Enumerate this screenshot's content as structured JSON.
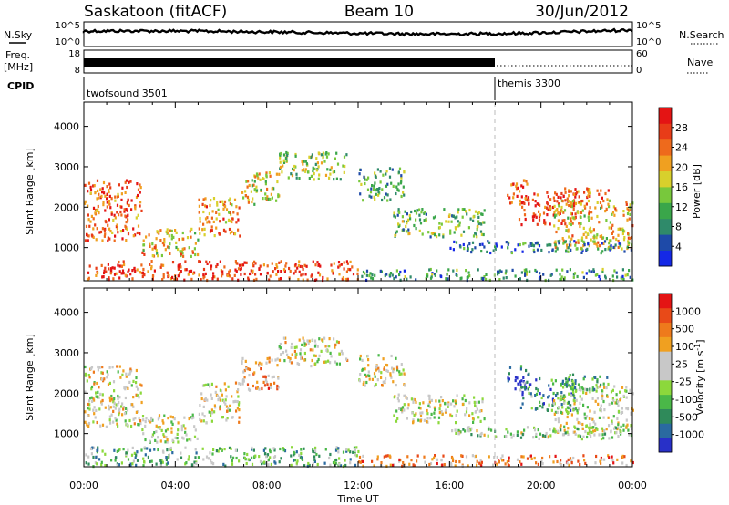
{
  "header": {
    "station": "Saskatoon (fitACF)",
    "beam": "Beam 10",
    "date": "30/Jun/2012"
  },
  "status_panels": {
    "nsky_label": "N.Sky",
    "nsearch_label": "N.Search",
    "freq_label_line1": "Freq.",
    "freq_label_line2": "[MHz]",
    "nave_label": "Nave",
    "cpid_label": "CPID",
    "nsky_ticks": [
      "10^5",
      "10^0"
    ],
    "nsearch_ticks": [
      "10^5",
      "10^0"
    ],
    "freq_ticks": [
      "18",
      "8"
    ],
    "nave_ticks": [
      "60",
      "0"
    ],
    "cpid_segments": [
      {
        "name": "twofsound 3501",
        "start_hour": 0,
        "end_hour": 18
      },
      {
        "name": "themis 3300",
        "start_hour": 18,
        "end_hour": 24
      }
    ]
  },
  "chart_data": [
    {
      "type": "heatmap",
      "quantity": "Power",
      "ylabel": "Slant Range [km]",
      "xlabel": "Time UT",
      "x_ticks": [
        "00:00",
        "04:00",
        "08:00",
        "12:00",
        "16:00",
        "20:00",
        "00:00"
      ],
      "xlim_hours": [
        0,
        24
      ],
      "y_ticks": [
        1000,
        2000,
        3000,
        4000
      ],
      "ylim": [
        180,
        4600
      ],
      "colorbar": {
        "label": "Power [dB]",
        "ticks": [
          "4",
          "8",
          "12",
          "16",
          "20",
          "24",
          "28"
        ],
        "colors": [
          "#1428e6",
          "#1e4aa8",
          "#2f8a6a",
          "#3aa64a",
          "#78c83c",
          "#d8d02c",
          "#f0a020",
          "#ee6a1c",
          "#e83c18",
          "#e41414"
        ]
      },
      "bands": [
        {
          "t0": 0.0,
          "t1": 2.5,
          "r0": 1200,
          "r1": 2700,
          "level": 0.8
        },
        {
          "t0": 2.5,
          "t1": 5.0,
          "r0": 800,
          "r1": 1500,
          "level": 0.6
        },
        {
          "t0": 5.0,
          "t1": 6.8,
          "r0": 1300,
          "r1": 2300,
          "level": 0.7
        },
        {
          "t0": 6.8,
          "t1": 8.5,
          "r0": 2100,
          "r1": 2900,
          "level": 0.55
        },
        {
          "t0": 8.5,
          "t1": 11.5,
          "r0": 2700,
          "r1": 3400,
          "level": 0.45
        },
        {
          "t0": 0.0,
          "t1": 12.0,
          "r0": 200,
          "r1": 700,
          "level": 0.85
        },
        {
          "t0": 12.0,
          "t1": 14.0,
          "r0": 2200,
          "r1": 3000,
          "level": 0.35
        },
        {
          "t0": 13.5,
          "t1": 17.5,
          "r0": 1300,
          "r1": 2000,
          "level": 0.4
        },
        {
          "t0": 12.0,
          "t1": 24.0,
          "r0": 200,
          "r1": 500,
          "level": 0.3
        },
        {
          "t0": 18.5,
          "t1": 19.5,
          "r0": 2100,
          "r1": 2700,
          "level": 0.85
        },
        {
          "t0": 19.0,
          "t1": 21.5,
          "r0": 1600,
          "r1": 2400,
          "level": 0.9
        },
        {
          "t0": 20.5,
          "t1": 24.0,
          "r0": 1000,
          "r1": 2200,
          "level": 0.6
        },
        {
          "t0": 21.0,
          "t1": 23.0,
          "r0": 2100,
          "r1": 2500,
          "level": 0.75
        },
        {
          "t0": 16.0,
          "t1": 24.0,
          "r0": 900,
          "r1": 1200,
          "level": 0.25
        }
      ]
    },
    {
      "type": "heatmap",
      "quantity": "Velocity",
      "ylabel": "Slant Range [km]",
      "xlabel": "Time UT",
      "x_ticks": [
        "00:00",
        "04:00",
        "08:00",
        "12:00",
        "16:00",
        "20:00",
        "00:00"
      ],
      "xlim_hours": [
        0,
        24
      ],
      "y_ticks": [
        1000,
        2000,
        3000,
        4000
      ],
      "ylim": [
        180,
        4600
      ],
      "colorbar": {
        "label": "Velocity [m s^-1]",
        "ticks": [
          "1000",
          "500",
          "100",
          "25",
          "-25",
          "-100",
          "-500",
          "-1000"
        ],
        "colors": [
          "#2830c8",
          "#2a6aa0",
          "#2f8a5a",
          "#4ab848",
          "#8cd83c",
          "#c8c8c8",
          "#c8c8c8",
          "#f0a020",
          "#ee7a1c",
          "#e84a18",
          "#e41414"
        ]
      },
      "bands": [
        {
          "t0": 0.0,
          "t1": 2.5,
          "r0": 1200,
          "r1": 2700,
          "level": 0.55
        },
        {
          "t0": 2.5,
          "t1": 5.0,
          "r0": 800,
          "r1": 1500,
          "level": 0.5
        },
        {
          "t0": 5.0,
          "t1": 6.8,
          "r0": 1300,
          "r1": 2300,
          "level": 0.55
        },
        {
          "t0": 6.8,
          "t1": 8.5,
          "r0": 2100,
          "r1": 2900,
          "level": 0.7
        },
        {
          "t0": 8.5,
          "t1": 11.5,
          "r0": 2700,
          "r1": 3400,
          "level": 0.55
        },
        {
          "t0": 0.0,
          "t1": 12.0,
          "r0": 200,
          "r1": 700,
          "level": 0.35
        },
        {
          "t0": 12.0,
          "t1": 14.0,
          "r0": 2200,
          "r1": 3000,
          "level": 0.55
        },
        {
          "t0": 13.5,
          "t1": 17.5,
          "r0": 1300,
          "r1": 2000,
          "level": 0.5
        },
        {
          "t0": 12.0,
          "t1": 24.0,
          "r0": 200,
          "r1": 500,
          "level": 0.75
        },
        {
          "t0": 18.5,
          "t1": 19.5,
          "r0": 2100,
          "r1": 2700,
          "level": 0.1
        },
        {
          "t0": 19.0,
          "t1": 21.5,
          "r0": 1600,
          "r1": 2400,
          "level": 0.25
        },
        {
          "t0": 20.5,
          "t1": 24.0,
          "r0": 1000,
          "r1": 2200,
          "level": 0.5
        },
        {
          "t0": 21.0,
          "t1": 23.0,
          "r0": 2100,
          "r1": 2500,
          "level": 0.3
        },
        {
          "t0": 16.0,
          "t1": 24.0,
          "r0": 900,
          "r1": 1200,
          "level": 0.45
        }
      ]
    }
  ]
}
